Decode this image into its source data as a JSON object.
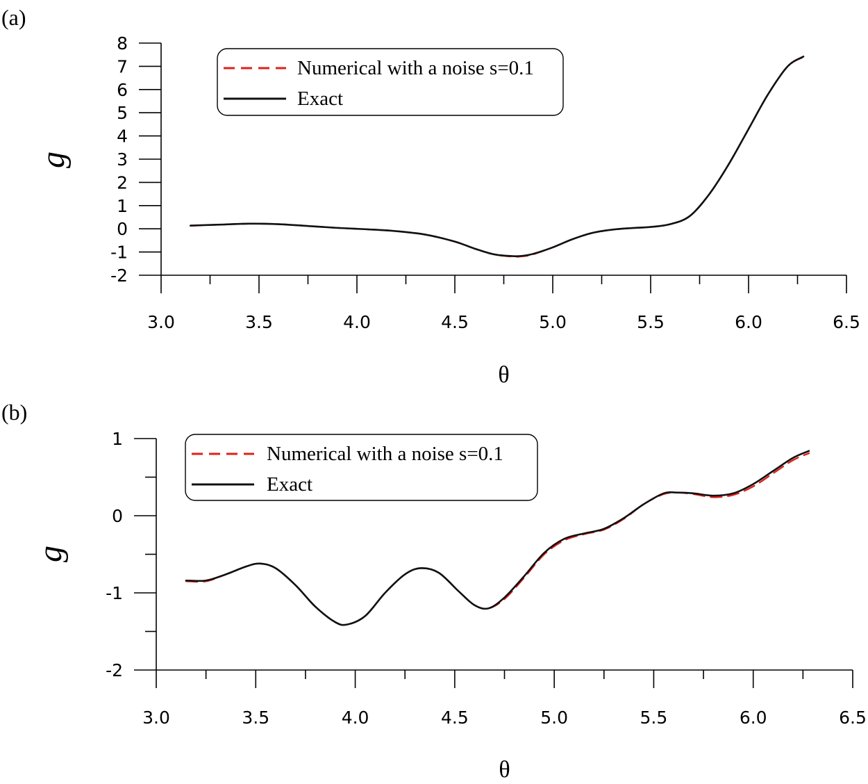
{
  "chart_data": [
    {
      "type": "line",
      "panel_label": "(a)",
      "xlabel": "θ",
      "ylabel": "g",
      "xlim": [
        3.0,
        6.5
      ],
      "ylim": [
        -2,
        8
      ],
      "x_ticks": [
        "3.0",
        "3.5",
        "4.0",
        "4.5",
        "5.0",
        "5.5",
        "6.0",
        "6.5"
      ],
      "y_ticks": [
        "8",
        "7",
        "6",
        "5",
        "4",
        "3",
        "2",
        "1",
        "0",
        "-1",
        "-2"
      ],
      "legend": [
        "Numerical with a noise s=0.1",
        "Exact"
      ],
      "series": [
        {
          "name": "Numerical with a noise s=0.1",
          "color": "#e0201b",
          "style": "dashed",
          "x": [
            3.15,
            3.3,
            3.45,
            3.6,
            3.75,
            3.9,
            4.05,
            4.2,
            4.35,
            4.5,
            4.6,
            4.7,
            4.8,
            4.85,
            4.9,
            5.0,
            5.1,
            5.2,
            5.3,
            5.4,
            5.5,
            5.6,
            5.7,
            5.8,
            5.9,
            6.0,
            6.1,
            6.2,
            6.28
          ],
          "values": [
            0.13,
            0.18,
            0.22,
            0.2,
            0.12,
            0.04,
            -0.02,
            -0.1,
            -0.25,
            -0.55,
            -0.85,
            -1.1,
            -1.2,
            -1.18,
            -1.1,
            -0.8,
            -0.45,
            -0.18,
            -0.04,
            0.03,
            0.08,
            0.2,
            0.55,
            1.5,
            2.8,
            4.3,
            5.8,
            7.0,
            7.4
          ]
        },
        {
          "name": "Exact",
          "color": "#111111",
          "style": "solid",
          "x": [
            3.15,
            3.3,
            3.45,
            3.6,
            3.75,
            3.9,
            4.05,
            4.2,
            4.35,
            4.5,
            4.6,
            4.7,
            4.8,
            4.85,
            4.9,
            5.0,
            5.1,
            5.2,
            5.3,
            5.4,
            5.5,
            5.6,
            5.7,
            5.8,
            5.9,
            6.0,
            6.1,
            6.2,
            6.28
          ],
          "values": [
            0.14,
            0.18,
            0.22,
            0.2,
            0.12,
            0.04,
            -0.02,
            -0.1,
            -0.25,
            -0.55,
            -0.85,
            -1.1,
            -1.18,
            -1.16,
            -1.08,
            -0.8,
            -0.45,
            -0.18,
            -0.04,
            0.03,
            0.08,
            0.2,
            0.55,
            1.5,
            2.8,
            4.3,
            5.8,
            7.0,
            7.42
          ]
        }
      ]
    },
    {
      "type": "line",
      "panel_label": "(b)",
      "xlabel": "θ",
      "ylabel": "g",
      "xlim": [
        3.0,
        6.5
      ],
      "ylim": [
        -2,
        1
      ],
      "x_ticks": [
        "3.0",
        "3.5",
        "4.0",
        "4.5",
        "5.0",
        "5.5",
        "6.0",
        "6.5"
      ],
      "y_ticks": [
        "1",
        "0",
        "-1",
        "-2"
      ],
      "legend": [
        "Numerical with a noise s=0.1",
        "Exact"
      ],
      "series": [
        {
          "name": "Numerical with a noise s=0.1",
          "color": "#e0201b",
          "style": "dashed",
          "x": [
            3.15,
            3.25,
            3.35,
            3.45,
            3.52,
            3.6,
            3.7,
            3.8,
            3.9,
            3.96,
            4.05,
            4.15,
            4.25,
            4.33,
            4.42,
            4.52,
            4.6,
            4.67,
            4.75,
            4.85,
            4.95,
            5.05,
            5.15,
            5.25,
            5.35,
            5.45,
            5.55,
            5.62,
            5.7,
            5.8,
            5.9,
            6.0,
            6.1,
            6.2,
            6.28
          ],
          "values": [
            -0.85,
            -0.85,
            -0.76,
            -0.66,
            -0.62,
            -0.68,
            -0.9,
            -1.18,
            -1.38,
            -1.41,
            -1.3,
            -1.0,
            -0.76,
            -0.68,
            -0.74,
            -0.98,
            -1.16,
            -1.2,
            -1.08,
            -0.8,
            -0.5,
            -0.32,
            -0.24,
            -0.18,
            -0.04,
            0.15,
            0.28,
            0.3,
            0.28,
            0.24,
            0.27,
            0.38,
            0.55,
            0.72,
            0.81
          ]
        },
        {
          "name": "Exact",
          "color": "#111111",
          "style": "solid",
          "x": [
            3.15,
            3.25,
            3.35,
            3.45,
            3.52,
            3.6,
            3.7,
            3.8,
            3.9,
            3.96,
            4.05,
            4.15,
            4.25,
            4.33,
            4.42,
            4.52,
            4.6,
            4.67,
            4.75,
            4.85,
            4.95,
            5.05,
            5.15,
            5.25,
            5.35,
            5.45,
            5.55,
            5.62,
            5.7,
            5.8,
            5.9,
            6.0,
            6.1,
            6.2,
            6.28
          ],
          "values": [
            -0.84,
            -0.84,
            -0.76,
            -0.66,
            -0.62,
            -0.68,
            -0.9,
            -1.18,
            -1.38,
            -1.41,
            -1.3,
            -1.0,
            -0.76,
            -0.68,
            -0.74,
            -0.98,
            -1.16,
            -1.2,
            -1.06,
            -0.78,
            -0.48,
            -0.3,
            -0.23,
            -0.17,
            -0.03,
            0.15,
            0.29,
            0.3,
            0.29,
            0.26,
            0.29,
            0.41,
            0.58,
            0.75,
            0.84
          ]
        }
      ]
    }
  ]
}
